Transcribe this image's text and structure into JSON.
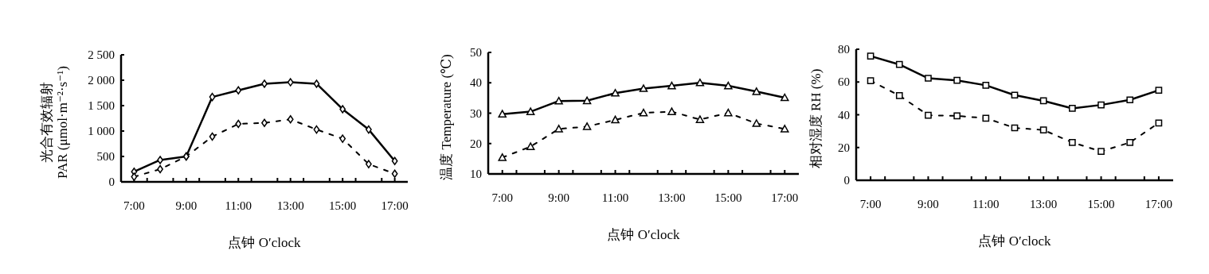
{
  "chart_data": [
    {
      "type": "line",
      "ylabel": "光合有效辐射\nPAR (μmol·m⁻²·s⁻¹)",
      "xlabel": "点钟 O′clock",
      "marker": "diamond",
      "xlim": [
        6.5,
        17.5
      ],
      "ylim": [
        0,
        2500
      ],
      "xticks": [
        {
          "value": 7,
          "label": "7:00"
        },
        {
          "value": 7.5,
          "label": null
        },
        {
          "value": 8.5,
          "label": null
        },
        {
          "value": 9,
          "label": "9:00"
        },
        {
          "value": 9.5,
          "label": null
        },
        {
          "value": 10.5,
          "label": null
        },
        {
          "value": 11,
          "label": "11:00"
        },
        {
          "value": 11.5,
          "label": null
        },
        {
          "value": 12.5,
          "label": null
        },
        {
          "value": 13,
          "label": "13:00"
        },
        {
          "value": 13.5,
          "label": null
        },
        {
          "value": 14.5,
          "label": null
        },
        {
          "value": 15,
          "label": "15:00"
        },
        {
          "value": 15.5,
          "label": null
        },
        {
          "value": 16.5,
          "label": null
        },
        {
          "value": 17,
          "label": "17:00"
        }
      ],
      "yticks": [
        0,
        500,
        {
          "value": 1000,
          "label": "1 000"
        },
        {
          "value": 1500,
          "label": "1 500"
        },
        {
          "value": 2000,
          "label": "2 000"
        },
        {
          "value": 2500,
          "label": "2 500"
        }
      ],
      "x": [
        7,
        8,
        9,
        10,
        11,
        12,
        13,
        14,
        15,
        16,
        17
      ],
      "series": [
        {
          "color": "#000000",
          "line_style": "solid",
          "values": [
            200,
            430,
            500,
            1670,
            1800,
            1930,
            1960,
            1930,
            1430,
            1030,
            410
          ]
        },
        {
          "color": "#000000",
          "line_style": "dashed",
          "values": [
            100,
            250,
            500,
            890,
            1140,
            1160,
            1230,
            1030,
            850,
            350,
            160
          ]
        }
      ]
    },
    {
      "type": "line",
      "ylabel": "温度 Temperature (℃)",
      "xlabel": "点钟 O′clock",
      "marker": "triangle",
      "xlim": [
        6.5,
        17.5
      ],
      "ylim": [
        10,
        50
      ],
      "xticks": [
        {
          "value": 7,
          "label": "7:00"
        },
        {
          "value": 7.5,
          "label": null
        },
        {
          "value": 8.5,
          "label": null
        },
        {
          "value": 9,
          "label": "9:00"
        },
        {
          "value": 9.5,
          "label": null
        },
        {
          "value": 10.5,
          "label": null
        },
        {
          "value": 11,
          "label": "11:00"
        },
        {
          "value": 11.5,
          "label": null
        },
        {
          "value": 12.5,
          "label": null
        },
        {
          "value": 13,
          "label": "13:00"
        },
        {
          "value": 13.5,
          "label": null
        },
        {
          "value": 14.5,
          "label": null
        },
        {
          "value": 15,
          "label": "15:00"
        },
        {
          "value": 15.5,
          "label": null
        },
        {
          "value": 16.5,
          "label": null
        },
        {
          "value": 17,
          "label": "17:00"
        }
      ],
      "yticks": [
        10,
        20,
        30,
        40,
        50
      ],
      "x": [
        7,
        8,
        9,
        10,
        11,
        12,
        13,
        14,
        15,
        16,
        17
      ],
      "series": [
        {
          "color": "#000000",
          "line_style": "solid",
          "values": [
            29.7,
            30.5,
            34,
            34.1,
            36.6,
            38.1,
            39,
            40,
            39,
            37.1,
            35.1
          ]
        },
        {
          "color": "#000000",
          "line_style": "dashed",
          "values": [
            15.4,
            19,
            24.8,
            25.6,
            27.8,
            30.1,
            30.5,
            27.9,
            30.1,
            26.6,
            24.8
          ]
        }
      ]
    },
    {
      "type": "line",
      "ylabel": "相对湿度 RH (%)",
      "xlabel": "点钟 O′clock",
      "marker": "square",
      "xlim": [
        6.5,
        17.5
      ],
      "ylim": [
        0,
        80
      ],
      "xticks": [
        {
          "value": 7,
          "label": "7:00"
        },
        {
          "value": 7.5,
          "label": null
        },
        {
          "value": 8.5,
          "label": null
        },
        {
          "value": 9,
          "label": "9:00"
        },
        {
          "value": 9.5,
          "label": null
        },
        {
          "value": 10.5,
          "label": null
        },
        {
          "value": 11,
          "label": "11:00"
        },
        {
          "value": 11.5,
          "label": null
        },
        {
          "value": 12.5,
          "label": null
        },
        {
          "value": 13,
          "label": "13:00"
        },
        {
          "value": 13.5,
          "label": null
        },
        {
          "value": 14.5,
          "label": null
        },
        {
          "value": 15,
          "label": "15:00"
        },
        {
          "value": 15.5,
          "label": null
        },
        {
          "value": 16.5,
          "label": null
        },
        {
          "value": 17,
          "label": "17:00"
        }
      ],
      "yticks": [
        0,
        20,
        40,
        60,
        80
      ],
      "x": [
        7,
        8,
        9,
        10,
        11,
        12,
        13,
        14,
        15,
        16,
        17
      ],
      "series": [
        {
          "color": "#000000",
          "line_style": "solid",
          "values": [
            75.8,
            70.7,
            62.3,
            61,
            58,
            52,
            48.5,
            43.9,
            46,
            49.1,
            55
          ]
        },
        {
          "color": "#000000",
          "line_style": "dashed",
          "values": [
            60.8,
            51.7,
            39.7,
            39.3,
            37.9,
            32,
            30.7,
            23.1,
            17.6,
            23.1,
            35
          ]
        }
      ]
    }
  ]
}
